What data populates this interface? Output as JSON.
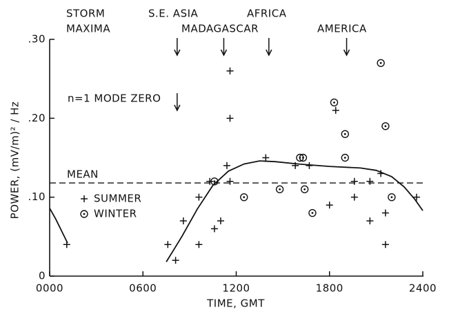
{
  "chart_data": {
    "type": "scatter",
    "xlabel": "TIME, GMT",
    "ylabel": "POWER, (mV/m)² / Hz",
    "header": [
      "STORM",
      "MAXIMA"
    ],
    "xlim": [
      0,
      24
    ],
    "ylim": [
      0,
      0.3
    ],
    "xticks": [
      {
        "value": 0,
        "label": "0000"
      },
      {
        "value": 6,
        "label": "0600"
      },
      {
        "value": 12,
        "label": "1200"
      },
      {
        "value": 18,
        "label": "1800"
      },
      {
        "value": 24,
        "label": "2400"
      }
    ],
    "yticks": [
      0,
      {
        "value": 0.1,
        "label": ".10"
      },
      {
        "value": 0.2,
        "label": ".20"
      },
      {
        "value": 0.3,
        "label": ".30"
      }
    ],
    "color": "#111111",
    "series": [
      {
        "name": "SUMMER",
        "marker": "plus",
        "x": [
          1.1,
          7.6,
          8.1,
          8.6,
          9.6,
          9.6,
          10.3,
          10.6,
          11.0,
          11.4,
          11.6,
          11.6,
          11.6,
          13.9,
          15.8,
          16.7,
          18.0,
          18.4,
          19.6,
          19.6,
          20.6,
          20.6,
          21.3,
          21.6,
          21.6,
          23.6
        ],
        "values": [
          0.04,
          0.04,
          0.02,
          0.07,
          0.04,
          0.1,
          0.12,
          0.06,
          0.07,
          0.14,
          0.26,
          0.12,
          0.2,
          0.15,
          0.14,
          0.14,
          0.09,
          0.21,
          0.12,
          0.1,
          0.12,
          0.07,
          0.13,
          0.08,
          0.04,
          0.1
        ]
      },
      {
        "name": "WINTER",
        "marker": "circle",
        "x": [
          10.6,
          12.5,
          14.8,
          16.1,
          16.3,
          16.4,
          16.9,
          18.3,
          19.0,
          19.0,
          21.3,
          21.6,
          22.0
        ],
        "values": [
          0.12,
          0.1,
          0.11,
          0.15,
          0.15,
          0.11,
          0.08,
          0.22,
          0.18,
          0.15,
          0.27,
          0.19,
          0.1
        ]
      }
    ],
    "mean": {
      "label": "MEAN",
      "value": 0.118
    },
    "curve": [
      {
        "x": [
          0,
          0.4,
          0.8,
          1.15
        ],
        "values": [
          0.086,
          0.072,
          0.056,
          0.042
        ]
      },
      {
        "x": [
          7.5,
          8.5,
          9.5,
          10.5,
          11.5,
          12.5,
          13.5,
          14.5,
          16,
          18,
          20,
          21,
          22,
          22.8,
          23.5,
          24
        ],
        "values": [
          0.018,
          0.05,
          0.085,
          0.115,
          0.133,
          0.142,
          0.146,
          0.145,
          0.142,
          0.139,
          0.137,
          0.134,
          0.126,
          0.113,
          0.097,
          0.083
        ]
      }
    ],
    "annotations": [
      {
        "text": "S.E. ASIA",
        "x": 8.2
      },
      {
        "text": "MADAGASCAR",
        "x": 11.2
      },
      {
        "text": "AFRICA",
        "x": 14.1
      },
      {
        "text": "AMERICA",
        "x": 19.1
      }
    ],
    "note": {
      "text": "n=1 MODE ZERO",
      "x": 8.2
    }
  }
}
